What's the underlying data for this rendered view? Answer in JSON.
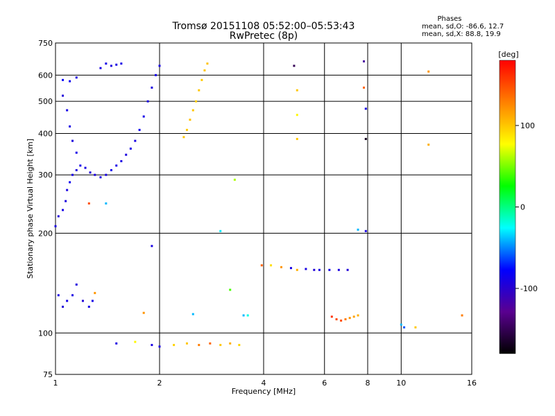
{
  "chart_data": {
    "type": "scatter",
    "title": "Tromsø 20151108 05:52:00–05:53:43",
    "subtitle": "RwPretec (8p)",
    "xlabel": "Frequency [MHz]",
    "ylabel": "Stationary phase Virtual Height [km]",
    "x_scale": "log",
    "y_scale": "log",
    "xlim": [
      1,
      16
    ],
    "ylim": [
      75,
      750
    ],
    "x_ticks": [
      "1",
      "2",
      "4",
      "6",
      "8",
      "10",
      "16"
    ],
    "x_tick_values": [
      1,
      2,
      4,
      6,
      8,
      10,
      16
    ],
    "y_ticks": [
      "75",
      "100",
      "200",
      "300",
      "400",
      "500",
      "600",
      "750"
    ],
    "y_tick_values": [
      75,
      100,
      200,
      300,
      400,
      500,
      600,
      750
    ],
    "grid": true,
    "phases_box": {
      "heading": "Phases",
      "line1": "mean, sd,O: -86.6, 12.7",
      "line2": "mean, sd,X: 88.8, 19.9"
    },
    "colorbar": {
      "label": "[deg]",
      "ticks": [
        "100",
        "0",
        "-100"
      ],
      "tick_values": [
        100,
        0,
        -100
      ],
      "range": [
        -180,
        180
      ],
      "colors": [
        "#000000",
        "#5a0090",
        "#0000ff",
        "#00ffff",
        "#00ff00",
        "#ffff00",
        "#ff8000",
        "#ff0000"
      ]
    },
    "series": [
      {
        "values": [
          [
            1.0,
            210,
            -90
          ],
          [
            1.02,
            225,
            -95
          ],
          [
            1.05,
            235,
            -88
          ],
          [
            1.07,
            250,
            -92
          ],
          [
            1.08,
            270,
            -90
          ],
          [
            1.1,
            285,
            -85
          ],
          [
            1.12,
            300,
            -90
          ],
          [
            1.15,
            310,
            -92
          ],
          [
            1.18,
            320,
            -88
          ],
          [
            1.22,
            315,
            -90
          ],
          [
            1.26,
            305,
            -95
          ],
          [
            1.3,
            300,
            -92
          ],
          [
            1.35,
            295,
            -88
          ],
          [
            1.4,
            300,
            -90
          ],
          [
            1.45,
            310,
            -85
          ],
          [
            1.5,
            320,
            -88
          ],
          [
            1.55,
            330,
            -90
          ],
          [
            1.6,
            345,
            -92
          ],
          [
            1.65,
            360,
            -88
          ],
          [
            1.7,
            380,
            -90
          ],
          [
            1.75,
            410,
            -85
          ],
          [
            1.8,
            450,
            -88
          ],
          [
            1.85,
            500,
            -90
          ],
          [
            1.9,
            550,
            -92
          ],
          [
            1.95,
            600,
            -88
          ],
          [
            2.0,
            640,
            -90
          ]
        ]
      },
      {
        "values": [
          [
            1.05,
            580,
            -80
          ],
          [
            1.1,
            575,
            -85
          ],
          [
            1.15,
            590,
            -90
          ],
          [
            1.05,
            520,
            -95
          ],
          [
            1.08,
            470,
            -88
          ],
          [
            1.1,
            420,
            -90
          ],
          [
            1.12,
            380,
            -92
          ],
          [
            1.15,
            350,
            -88
          ]
        ]
      },
      {
        "values": [
          [
            1.35,
            630,
            -90
          ],
          [
            1.4,
            650,
            -88
          ],
          [
            1.45,
            640,
            -92
          ],
          [
            1.5,
            645,
            -90
          ],
          [
            1.55,
            650,
            -88
          ]
        ]
      },
      {
        "values": [
          [
            2.35,
            390,
            100
          ],
          [
            2.4,
            410,
            98
          ],
          [
            2.45,
            440,
            102
          ],
          [
            2.5,
            470,
            100
          ],
          [
            2.55,
            500,
            96
          ],
          [
            2.6,
            540,
            100
          ],
          [
            2.65,
            580,
            98
          ],
          [
            2.7,
            620,
            100
          ],
          [
            2.75,
            650,
            102
          ]
        ]
      },
      {
        "values": [
          [
            1.02,
            130,
            -90
          ],
          [
            1.05,
            120,
            -95
          ],
          [
            1.08,
            125,
            -88
          ],
          [
            1.12,
            130,
            -90
          ],
          [
            1.15,
            140,
            -92
          ],
          [
            1.2,
            125,
            -95
          ],
          [
            1.25,
            120,
            -90
          ],
          [
            1.28,
            125,
            -88
          ]
        ]
      },
      {
        "values": [
          [
            1.5,
            93,
            -90
          ],
          [
            1.7,
            94,
            80
          ],
          [
            1.9,
            92,
            -90
          ],
          [
            2.0,
            91,
            -92
          ],
          [
            2.2,
            92,
            95
          ],
          [
            2.4,
            93,
            100
          ],
          [
            2.6,
            92,
            130
          ],
          [
            2.8,
            93,
            140
          ],
          [
            3.0,
            92,
            100
          ],
          [
            3.2,
            93,
            110
          ],
          [
            3.4,
            92,
            95
          ]
        ]
      },
      {
        "values": [
          [
            3.95,
            160,
            140
          ],
          [
            4.2,
            160,
            90
          ],
          [
            4.5,
            158,
            120
          ],
          [
            4.8,
            157,
            -90
          ],
          [
            5.0,
            155,
            110
          ],
          [
            5.3,
            156,
            -90
          ],
          [
            5.6,
            155,
            -95
          ],
          [
            5.8,
            155,
            -90
          ],
          [
            6.2,
            155,
            -88
          ],
          [
            6.6,
            155,
            -92
          ],
          [
            7.0,
            155,
            -95
          ]
        ]
      },
      {
        "values": [
          [
            6.3,
            112,
            160
          ],
          [
            6.5,
            110,
            150
          ],
          [
            6.7,
            109,
            150
          ],
          [
            6.9,
            110,
            130
          ],
          [
            7.1,
            111,
            120
          ],
          [
            7.3,
            112,
            115
          ],
          [
            7.5,
            113,
            110
          ]
        ]
      },
      {
        "values": [
          [
            4.9,
            640,
            -150
          ],
          [
            5.0,
            540,
            100
          ],
          [
            5.0,
            455,
            80
          ],
          [
            5.0,
            385,
            100
          ],
          [
            7.8,
            660,
            -120
          ],
          [
            7.8,
            550,
            140
          ],
          [
            7.9,
            475,
            -90
          ],
          [
            7.9,
            385,
            -170
          ],
          [
            7.5,
            205,
            -40
          ],
          [
            7.9,
            203,
            -90
          ],
          [
            12.0,
            615,
            120
          ],
          [
            12.0,
            370,
            110
          ],
          [
            10.0,
            106,
            -40
          ],
          [
            10.2,
            104,
            -60
          ],
          [
            11.0,
            104,
            100
          ],
          [
            15.0,
            113,
            130
          ],
          [
            3.3,
            290,
            60
          ],
          [
            3.0,
            203,
            -30
          ],
          [
            3.2,
            135,
            40
          ],
          [
            3.5,
            113,
            -40
          ],
          [
            3.6,
            113,
            -20
          ],
          [
            1.9,
            183,
            -90
          ],
          [
            1.8,
            115,
            120
          ],
          [
            2.5,
            114,
            -40
          ],
          [
            1.4,
            246,
            -40
          ],
          [
            1.3,
            132,
            120
          ],
          [
            1.25,
            246,
            150
          ]
        ]
      }
    ]
  }
}
